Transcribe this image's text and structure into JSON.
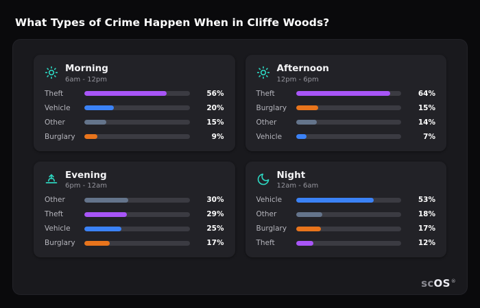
{
  "page": {
    "title": "What Types of Crime Happen When in Cliffe Woods?"
  },
  "brand": {
    "prefix": "sc",
    "suffix": "OS",
    "mark": "®"
  },
  "colors": {
    "Theft": "#a855f7",
    "Vehicle": "#3b82f6",
    "Other": "#64748b",
    "Burglary": "#e8741c",
    "icon": "#2dd4bf"
  },
  "chart_data": [
    {
      "type": "bar",
      "title": "Morning",
      "subtitle": "6am - 12pm",
      "icon": "sun-icon",
      "unit": "%",
      "categories": [
        "Theft",
        "Vehicle",
        "Other",
        "Burglary"
      ],
      "values": [
        56,
        20,
        15,
        9
      ]
    },
    {
      "type": "bar",
      "title": "Afternoon",
      "subtitle": "12pm - 6pm",
      "icon": "sun-icon",
      "unit": "%",
      "categories": [
        "Theft",
        "Burglary",
        "Other",
        "Vehicle"
      ],
      "values": [
        64,
        15,
        14,
        7
      ]
    },
    {
      "type": "bar",
      "title": "Evening",
      "subtitle": "6pm - 12am",
      "icon": "sunset-icon",
      "unit": "%",
      "categories": [
        "Other",
        "Theft",
        "Vehicle",
        "Burglary"
      ],
      "values": [
        30,
        29,
        25,
        17
      ]
    },
    {
      "type": "bar",
      "title": "Night",
      "subtitle": "12am - 6am",
      "icon": "moon-icon",
      "unit": "%",
      "categories": [
        "Vehicle",
        "Other",
        "Burglary",
        "Theft"
      ],
      "values": [
        53,
        18,
        17,
        12
      ]
    }
  ]
}
